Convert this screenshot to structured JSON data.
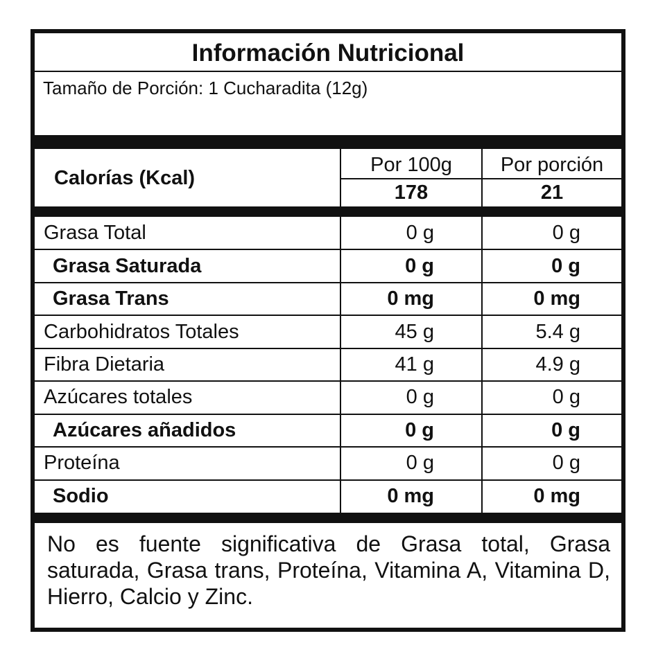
{
  "header": {
    "title": "Información Nutricional",
    "serving": "Tamaño de Porción: 1 Cucharadita (12g)"
  },
  "calories": {
    "label": "Calorías (Kcal)",
    "col1": "Por 100g",
    "col2": "Por porción",
    "value1": "178",
    "value2": "21"
  },
  "table": {
    "rows": [
      [
        "Grasa Total",
        "0 g",
        "0 g"
      ],
      [
        "Grasa Saturada",
        "0 g",
        "0 g"
      ],
      [
        "Grasa Trans",
        "0 mg",
        "0 mg"
      ],
      [
        "Carbohidratos Totales",
        "45 g",
        "5.4 g"
      ],
      [
        "Fibra Dietaria",
        "41 g",
        "4.9 g"
      ],
      [
        "Azúcares totales",
        "0 g",
        "0 g"
      ],
      [
        "Azúcares añadidos",
        "0 g",
        "0 g"
      ],
      [
        "Proteína",
        "0 g",
        "0 g"
      ],
      [
        "Sodio",
        "0 mg",
        "0 mg"
      ]
    ],
    "bold": [
      false,
      true,
      true,
      false,
      false,
      false,
      true,
      false,
      true
    ]
  },
  "footnote": "No es fuente significativa de Grasa total, Grasa saturada, Grasa trans, Proteína, Vitamina A, Vitamina D, Hierro, Calcio y Zinc."
}
